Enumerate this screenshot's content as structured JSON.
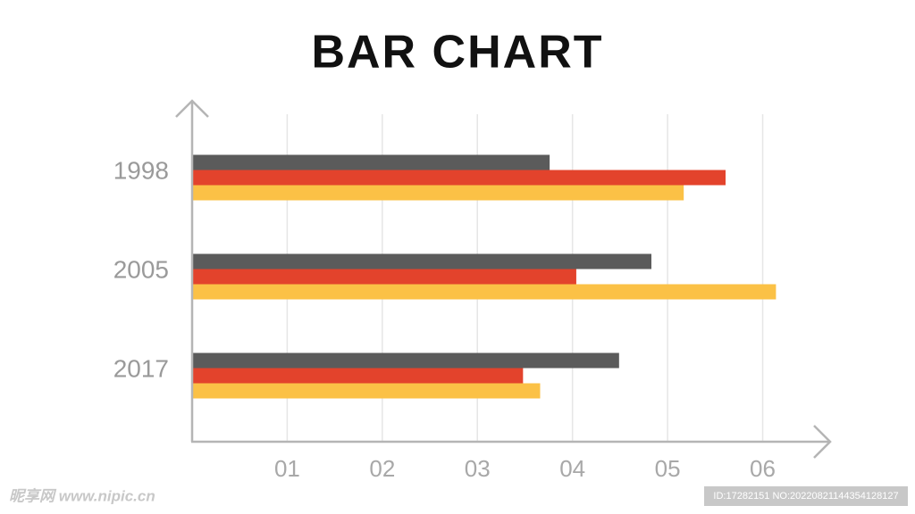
{
  "chart_data": {
    "type": "hbar",
    "title": "BAR CHART",
    "categories": [
      "1998",
      "2005",
      "2017"
    ],
    "series": [
      {
        "color": "#5b5b5b",
        "values": [
          3.76,
          4.83,
          4.49
        ]
      },
      {
        "color": "#e3432c",
        "values": [
          5.61,
          4.04,
          3.48
        ]
      },
      {
        "color": "#fbc146",
        "values": [
          5.17,
          6.14,
          3.66
        ]
      }
    ],
    "xlim": [
      0,
      6.7
    ],
    "xticks": [
      {
        "value": 1,
        "label": "01"
      },
      {
        "value": 2,
        "label": "02"
      },
      {
        "value": 3,
        "label": "03"
      },
      {
        "value": 4,
        "label": "04"
      },
      {
        "value": 5,
        "label": "05"
      },
      {
        "value": 6,
        "label": "06"
      }
    ],
    "grid": true,
    "watermark": "昵享网 www.nipic.cn",
    "image_id": "ID:17282151 NO:20220821144354128127"
  }
}
